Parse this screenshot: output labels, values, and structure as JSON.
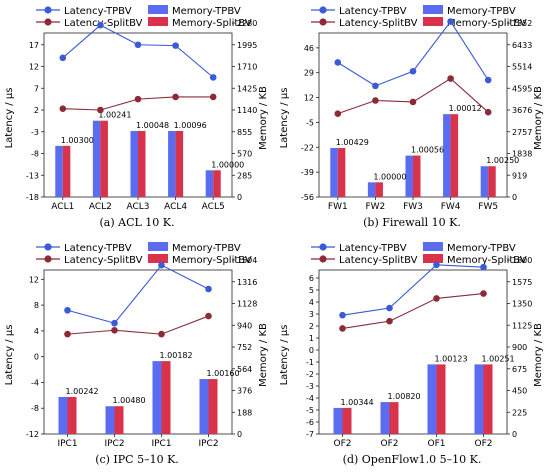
{
  "colors": {
    "latency_tpbv": "#3a5ad7",
    "latency_splitbv": "#8c2a38",
    "memory_tpbv": "#5b6cf0",
    "memory_splitbv": "#d8334a"
  },
  "legend": {
    "latency_tpbv": "Latency-TPBV",
    "latency_splitbv": "Latency-SplitBV",
    "memory_tpbv": "Memory-TPBV",
    "memory_splitbv": "Memory-SplitBV"
  },
  "chart_data": [
    {
      "type": "bar",
      "caption": "(a)  ACL 10 K.",
      "ylabel_left": "Latency / μs",
      "ylabel_right": "Memory / KB",
      "categories": [
        "ACL1",
        "ACL2",
        "ACL3",
        "ACL4",
        "ACL5"
      ],
      "left_ticks": [
        "-18",
        "-13",
        "-8",
        "-3",
        "2",
        "7",
        "12",
        "17"
      ],
      "ylim_left": [
        -18,
        22
      ],
      "right_ticks": [
        "0",
        "285",
        "570",
        "855",
        "1140",
        "1425",
        "1710",
        "1995",
        "2280"
      ],
      "ylim_right": [
        0,
        2280
      ],
      "latency_tpbv": [
        14.0,
        21.5,
        17.0,
        16.8,
        9.5
      ],
      "latency_splitbv": [
        2.3,
        2.0,
        4.5,
        5.0,
        5.0
      ],
      "memory_tpbv": [
        670,
        1000,
        865,
        865,
        350
      ],
      "memory_splitbv": [
        670,
        1000,
        865,
        865,
        350
      ],
      "ratio_labels": [
        "1.00300",
        "1.00241",
        "1.00048",
        "1.00096",
        "1.00000"
      ],
      "legend_position": "top"
    },
    {
      "type": "bar",
      "caption": "(b)  Firewall 10 K.",
      "ylabel_left": "Latency / μs",
      "ylabel_right": "Memory / KB",
      "categories": [
        "FW1",
        "FW2",
        "FW3",
        "FW4",
        "FW5"
      ],
      "left_ticks": [
        "-56",
        "-39",
        "-22",
        "-5",
        "12",
        "29",
        "46",
        "63"
      ],
      "ylim_left": [
        -56,
        63
      ],
      "right_ticks": [
        "0",
        "919",
        "1838",
        "2757",
        "3676",
        "4595",
        "5514",
        "6433",
        "7352"
      ],
      "ylim_right": [
        0,
        7352
      ],
      "latency_tpbv": [
        36.0,
        20.0,
        30.0,
        64.0,
        24.0
      ],
      "latency_splitbv": [
        1.0,
        10.0,
        9.0,
        25.0,
        2.0
      ],
      "memory_tpbv": [
        2070,
        620,
        1750,
        3500,
        1300
      ],
      "memory_splitbv": [
        2070,
        620,
        1750,
        3500,
        1300
      ],
      "ratio_labels": [
        "1.00429",
        "1.00000",
        "1.00056",
        "1.00012",
        "1.00250"
      ],
      "legend_position": "top"
    },
    {
      "type": "bar",
      "caption": "(c)  IPC 5–10 K.",
      "ylabel_left": "Latency / μs",
      "ylabel_right": "Memory / KB",
      "categories": [
        "IPC1",
        "IPC2",
        "IPC1",
        "IPC2"
      ],
      "left_ticks": [
        "-12",
        "-8",
        "-4",
        "0",
        "4",
        "8",
        "12"
      ],
      "ylim_left": [
        -12,
        15
      ],
      "right_ticks": [
        "0",
        "188",
        "376",
        "564",
        "752",
        "940",
        "1128",
        "1316",
        "1504"
      ],
      "ylim_right": [
        0,
        1504
      ],
      "latency_tpbv": [
        7.2,
        5.2,
        14.2,
        10.5
      ],
      "latency_splitbv": [
        3.5,
        4.1,
        3.5,
        6.3
      ],
      "memory_tpbv": [
        320,
        240,
        630,
        475
      ],
      "memory_splitbv": [
        320,
        240,
        630,
        475
      ],
      "ratio_labels": [
        "1.00242",
        "1.00480",
        "1.00182",
        "1.00160"
      ],
      "legend_position": "top"
    },
    {
      "type": "bar",
      "caption": "(d)  OpenFlow1.0 5–10 K.",
      "ylabel_left": "Latency / μs",
      "ylabel_right": "Memory / KB",
      "categories": [
        "OF2",
        "OF2",
        "OF1",
        "OF2"
      ],
      "left_ticks": [
        "-7",
        "-6",
        "-5",
        "-4",
        "-3",
        "-2",
        "-1",
        "0",
        "1",
        "2",
        "3",
        "4",
        "5",
        "6",
        "7"
      ],
      "ylim_left": [
        -7,
        7.5
      ],
      "right_ticks": [
        "0",
        "225",
        "450",
        "675",
        "900",
        "1125",
        "1350",
        "1575",
        "1800"
      ],
      "ylim_right": [
        0,
        1800
      ],
      "latency_tpbv": [
        2.9,
        3.5,
        7.1,
        6.9
      ],
      "latency_splitbv": [
        1.8,
        2.4,
        4.3,
        4.7
      ],
      "memory_tpbv": [
        270,
        330,
        720,
        720
      ],
      "memory_splitbv": [
        270,
        330,
        720,
        720
      ],
      "ratio_labels": [
        "1.00344",
        "1.00820",
        "1.00123",
        "1.00251"
      ],
      "legend_position": "top"
    }
  ]
}
